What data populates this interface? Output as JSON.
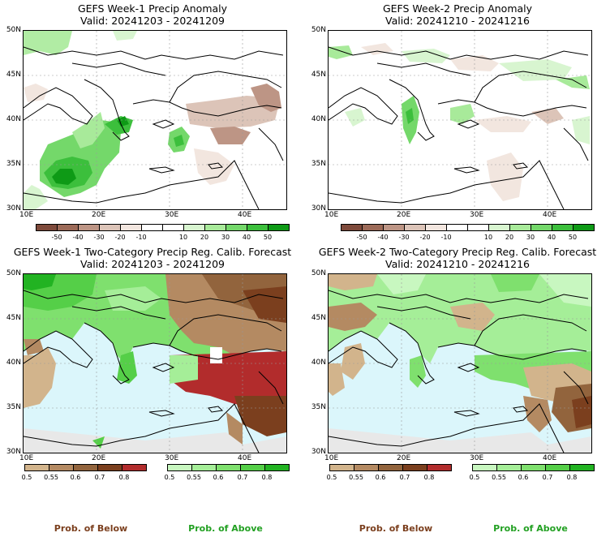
{
  "panels": [
    {
      "title": "GEFS Week-1 Precip Anomaly",
      "valid": "Valid: 20241203 - 20241209",
      "lat_ticks": [
        "50N",
        "45N",
        "40N",
        "35N",
        "30N"
      ],
      "lon_ticks": [
        "10E",
        "20E",
        "30E",
        "40E"
      ],
      "colorbar": {
        "kind": "anomaly",
        "colors": [
          "#7e4a3b",
          "#9c6a58",
          "#bd9585",
          "#dcc4b8",
          "#f2e6df",
          "#ffffff",
          "#ffffff",
          "#d8f5d0",
          "#a8ea9a",
          "#74d86a",
          "#3cbf3c",
          "#0e9a16"
        ],
        "labels": [
          "-50",
          "-40",
          "-30",
          "-20",
          "-10",
          "10",
          "20",
          "30",
          "40",
          "50"
        ]
      }
    },
    {
      "title": "GEFS Week-2 Precip Anomaly",
      "valid": "Valid: 20241210 - 20241216",
      "lat_ticks": [
        "50N",
        "45N",
        "40N",
        "35N",
        "30N"
      ],
      "lon_ticks": [
        "10E",
        "20E",
        "30E",
        "40E"
      ],
      "colorbar": {
        "kind": "anomaly",
        "colors": [
          "#7e4a3b",
          "#9c6a58",
          "#bd9585",
          "#dcc4b8",
          "#f2e6df",
          "#ffffff",
          "#ffffff",
          "#d8f5d0",
          "#a8ea9a",
          "#74d86a",
          "#3cbf3c",
          "#0e9a16"
        ],
        "labels": [
          "-50",
          "-40",
          "-30",
          "-20",
          "-10",
          "10",
          "20",
          "30",
          "40",
          "50"
        ]
      }
    },
    {
      "title": "GEFS Week-1 Two-Category Precip Reg. Calib. Forecast",
      "valid": "Valid: 20241203 - 20241209",
      "lat_ticks": [
        "50N",
        "45N",
        "40N",
        "35N",
        "30N"
      ],
      "lon_ticks": [
        "10E",
        "20E",
        "30E",
        "40E"
      ],
      "below_colors": [
        "#d2b48c",
        "#b48a62",
        "#92643d",
        "#7b3f1e",
        "#b22c2c"
      ],
      "below_labels": [
        "0.5",
        "0.55",
        "0.6",
        "0.7",
        "0.8"
      ],
      "above_colors": [
        "#c8f7c0",
        "#a5ee98",
        "#7fe06e",
        "#55cf48",
        "#22b322"
      ],
      "above_labels": [
        "0.5",
        "0.55",
        "0.6",
        "0.7",
        "0.8"
      ]
    },
    {
      "title": "GEFS Week-2 Two-Category Precip Reg. Calib. Forecast",
      "valid": "Valid: 20241210 - 20241216",
      "lat_ticks": [
        "50N",
        "45N",
        "40N",
        "35N",
        "30N"
      ],
      "lon_ticks": [
        "10E",
        "20E",
        "30E",
        "40E"
      ],
      "below_colors": [
        "#d2b48c",
        "#b48a62",
        "#92643d",
        "#7b3f1e",
        "#b22c2c"
      ],
      "below_labels": [
        "0.5",
        "0.55",
        "0.6",
        "0.7",
        "0.8"
      ],
      "above_colors": [
        "#c8f7c0",
        "#a5ee98",
        "#7fe06e",
        "#55cf48",
        "#22b322"
      ],
      "above_labels": [
        "0.5",
        "0.55",
        "0.6",
        "0.7",
        "0.8"
      ]
    }
  ],
  "bottom_labels": {
    "below": "Prob. of Below",
    "above": "Prob. of Above",
    "below_color": "#7b3f1e",
    "above_color": "#22a022"
  },
  "colors": {
    "sea_fill": "#dbf6fb",
    "land_dry": "#e8e8e8",
    "coast": "#000000"
  }
}
